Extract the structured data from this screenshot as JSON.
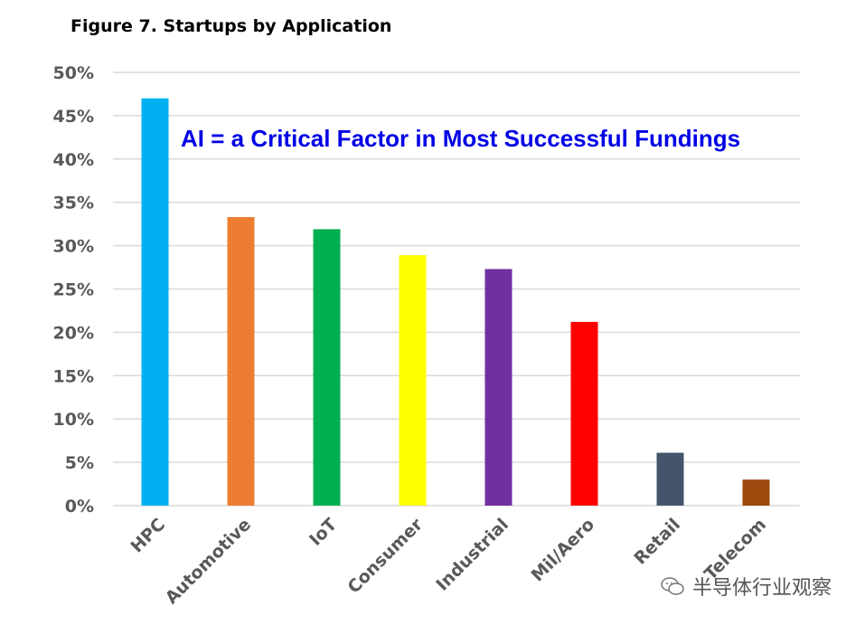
{
  "chart_data": {
    "type": "bar",
    "title": "Figure 7. Startups by Application",
    "annotation": "AI = a Critical Factor in Most Successful Fundings",
    "categories": [
      "HPC",
      "Automotive",
      "IoT",
      "Consumer",
      "Industrial",
      "Mil/Aero",
      "Retail",
      "Telecom"
    ],
    "values": [
      47,
      33.3,
      31.9,
      28.9,
      27.3,
      21.2,
      6.1,
      3.0
    ],
    "colors": [
      "#00b0f0",
      "#ed7d31",
      "#00b050",
      "#ffff00",
      "#7030a0",
      "#ff0000",
      "#44546a",
      "#9e480e"
    ],
    "ylim": [
      0,
      50
    ],
    "yticks": [
      "0%",
      "5%",
      "10%",
      "15%",
      "20%",
      "25%",
      "30%",
      "35%",
      "40%",
      "45%",
      "50%"
    ],
    "grid": true,
    "xlabel": "",
    "ylabel": ""
  },
  "watermark": {
    "text": "半导体行业观察"
  },
  "colors": {
    "annotation": "#0000e6",
    "grid": "#d9d9d9",
    "tick_text": "#595959"
  }
}
